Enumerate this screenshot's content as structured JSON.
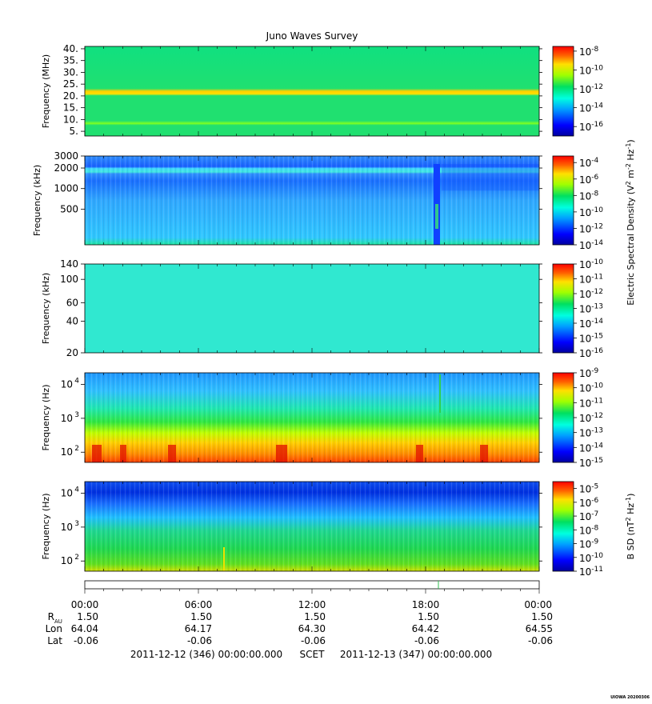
{
  "chart_data": {
    "type": "heatmap",
    "title": "Juno Waves Survey",
    "x_tick_labels": [
      "00:00",
      "06:00",
      "12:00",
      "18:00",
      "00:00"
    ],
    "ephemeris": {
      "rows": [
        {
          "label": "R",
          "sub": "AU",
          "values": [
            "1.50",
            "1.50",
            "1.50",
            "1.50",
            "1.50"
          ]
        },
        {
          "label": "Lon",
          "sub": "",
          "values": [
            "64.04",
            "64.17",
            "64.30",
            "64.42",
            "64.55"
          ]
        },
        {
          "label": "Lat",
          "sub": "",
          "values": [
            "-0.06",
            "-0.06",
            "-0.06",
            "-0.06",
            "-0.06"
          ]
        }
      ]
    },
    "time_start": "2011-12-12 (346) 00:00:00.000",
    "time_ref": "SCET",
    "time_end": "2011-12-13 (347) 00:00:00.000",
    "shared_colorbar_labels": [
      {
        "panels": [
          0,
          3
        ],
        "text": "Electric Spectral Density (V",
        "sup1": "2",
        "mid": " m",
        "sup2": "-2",
        "mid2": " Hz",
        "sup3": "-1",
        "end": ")"
      }
    ],
    "panels": [
      {
        "ylabel": "Frequency (MHz)",
        "ylim": [
          3,
          41
        ],
        "yscale": "linear",
        "y_ticks": [
          {
            "v": 5,
            "label": "5."
          },
          {
            "v": 10,
            "label": "10."
          },
          {
            "v": 15,
            "label": "15."
          },
          {
            "v": 20,
            "label": "20."
          },
          {
            "v": 25,
            "label": "25."
          },
          {
            "v": 30,
            "label": "30."
          },
          {
            "v": 35,
            "label": "35."
          },
          {
            "v": 40,
            "label": "40."
          }
        ],
        "cbar_ticks": [
          {
            "e": -16
          },
          {
            "e": -14
          },
          {
            "e": -12
          },
          {
            "e": -10
          },
          {
            "e": -8
          }
        ],
        "cbar_range": [
          -17,
          -7.5
        ]
      },
      {
        "ylabel": "Frequency (kHz)",
        "ylim": [
          150,
          3000
        ],
        "yscale": "log",
        "y_ticks": [
          {
            "v": 500,
            "label": "500"
          },
          {
            "v": 1000,
            "label": "1000"
          },
          {
            "v": 2000,
            "label": "2000"
          },
          {
            "v": 3000,
            "label": "3000"
          }
        ],
        "cbar_ticks": [
          {
            "e": -14
          },
          {
            "e": -12
          },
          {
            "e": -10
          },
          {
            "e": -8
          },
          {
            "e": -6
          },
          {
            "e": -4
          }
        ],
        "cbar_range": [
          -14,
          -3.2
        ]
      },
      {
        "ylabel": "Frequency (kHz)",
        "ylim": [
          20,
          140
        ],
        "yscale": "log",
        "y_ticks": [
          {
            "v": 20,
            "label": "20"
          },
          {
            "v": 40,
            "label": "40"
          },
          {
            "v": 60,
            "label": "60"
          },
          {
            "v": 100,
            "label": "100"
          },
          {
            "v": 140,
            "label": "140"
          }
        ],
        "cbar_ticks": [
          {
            "e": -16
          },
          {
            "e": -15
          },
          {
            "e": -14
          },
          {
            "e": -13
          },
          {
            "e": -12
          },
          {
            "e": -11
          },
          {
            "e": -10
          }
        ],
        "cbar_range": [
          -16,
          -10
        ]
      },
      {
        "ylabel": "Frequency (Hz)",
        "ylim": [
          50,
          22000
        ],
        "yscale": "log",
        "y_ticks": [
          {
            "v": 100,
            "label": "10",
            "sup": "2"
          },
          {
            "v": 1000,
            "label": "10",
            "sup": "3"
          },
          {
            "v": 10000,
            "label": "10",
            "sup": "4"
          }
        ],
        "cbar_ticks": [
          {
            "e": -15
          },
          {
            "e": -14
          },
          {
            "e": -13
          },
          {
            "e": -12
          },
          {
            "e": -11
          },
          {
            "e": -10
          },
          {
            "e": -9
          }
        ],
        "cbar_range": [
          -15,
          -9
        ]
      },
      {
        "ylabel": "Frequency (Hz)",
        "ylim": [
          50,
          22000
        ],
        "yscale": "log",
        "y_ticks": [
          {
            "v": 100,
            "label": "10",
            "sup": "2"
          },
          {
            "v": 1000,
            "label": "10",
            "sup": "3"
          },
          {
            "v": 10000,
            "label": "10",
            "sup": "4"
          }
        ],
        "cbar_ticks": [
          {
            "e": -11
          },
          {
            "e": -10
          },
          {
            "e": -9
          },
          {
            "e": -8
          },
          {
            "e": -7
          },
          {
            "e": -6
          },
          {
            "e": -5
          }
        ],
        "cbar_range": [
          -11,
          -4.5
        ],
        "cbar_label": {
          "text": "B SD (nT",
          "sup1": "2",
          "mid": " Hz",
          "sup2": "-1",
          "end": ")"
        }
      }
    ],
    "footer_tag": "UIOWA 20200306"
  }
}
